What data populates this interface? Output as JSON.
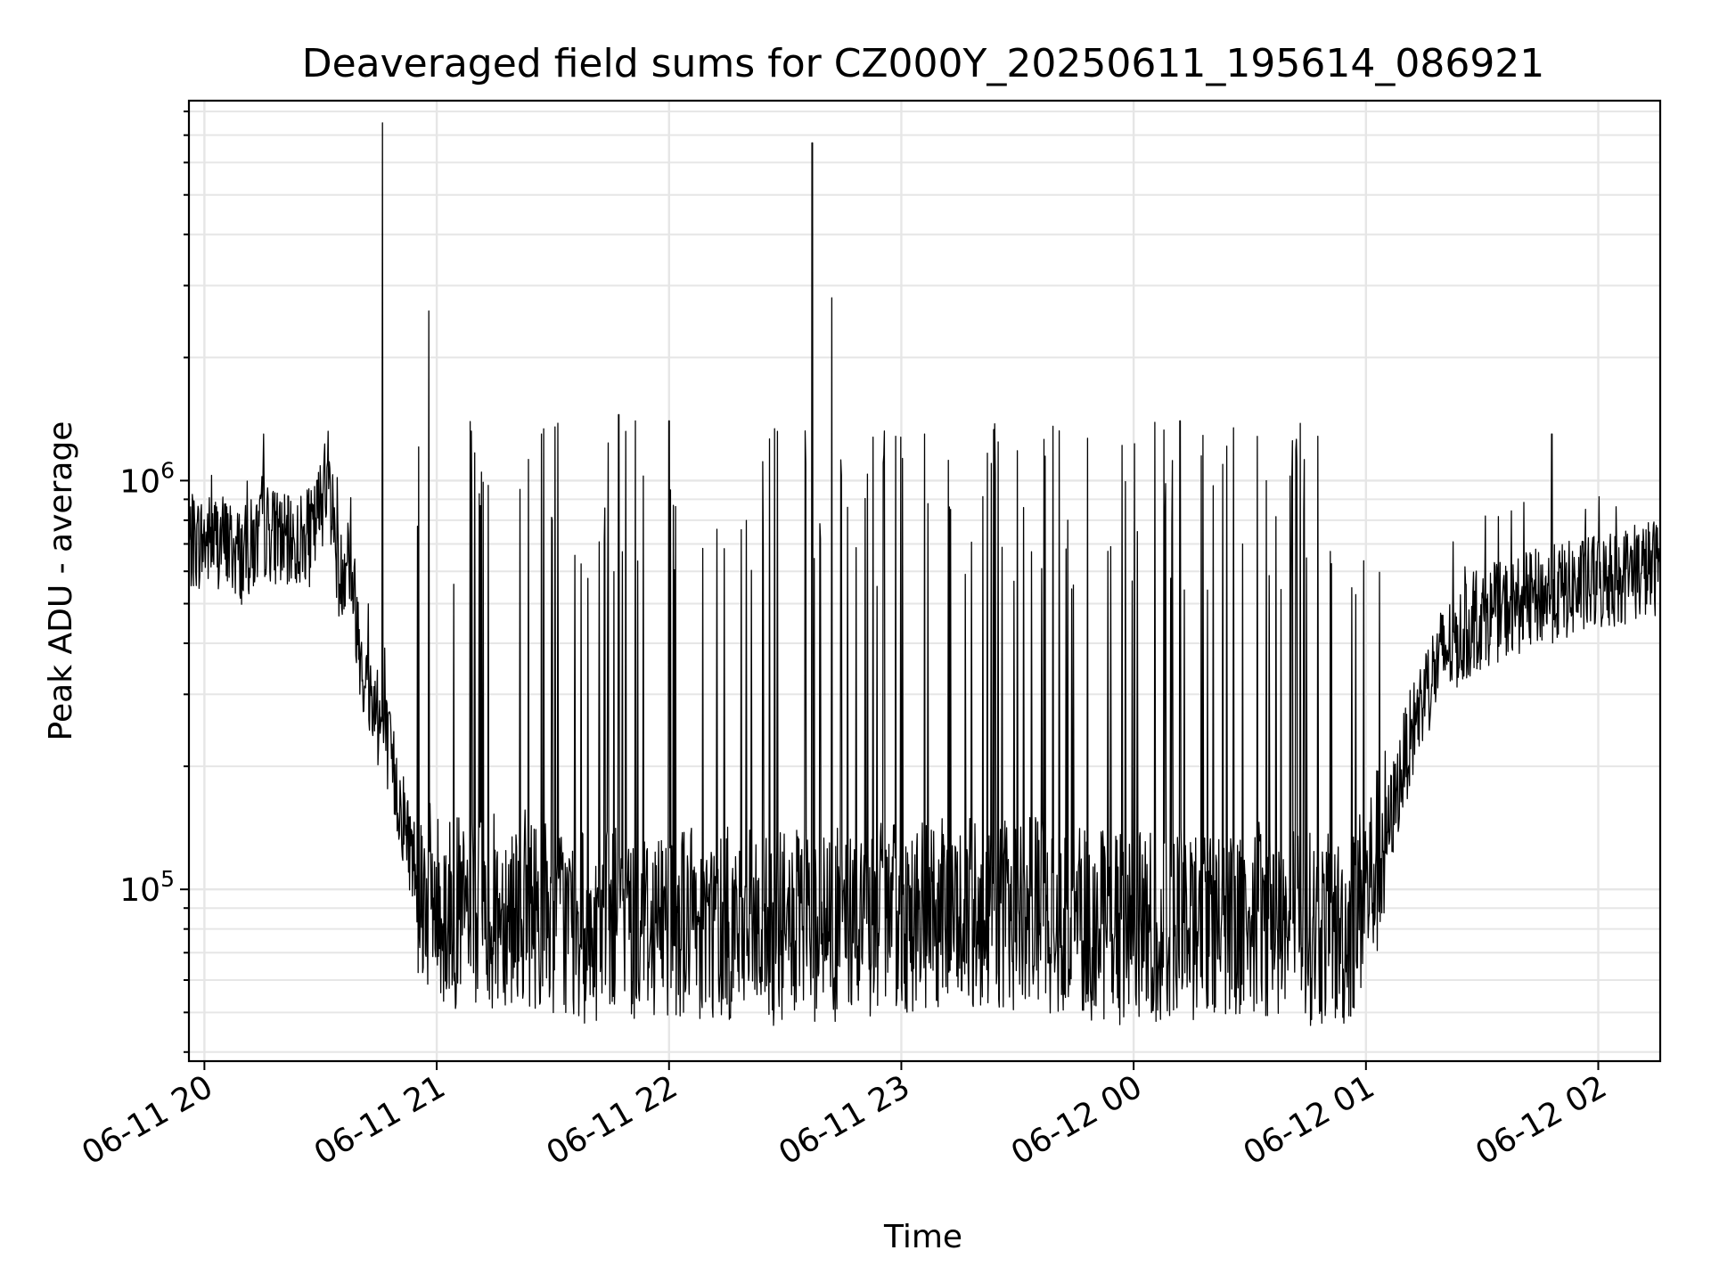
{
  "chart_data": {
    "type": "line",
    "title": "Deaveraged field sums for CZ000Y_20250611_195614_086921",
    "xlabel": "Time",
    "ylabel": "Peak ADU - average",
    "yscale": "log",
    "grid": "on (major and minor)",
    "legend": "none",
    "xlim": [
      "2025-06-11 19:56",
      "2025-06-12 02:16"
    ],
    "ylim": [
      38000,
      8500000
    ],
    "x_ticks": [
      "06-11 20",
      "06-11 21",
      "06-11 22",
      "06-11 23",
      "06-12 00",
      "06-12 01",
      "06-12 02"
    ],
    "x_tick_times": [
      "2025-06-11 20:00",
      "2025-06-11 21:00",
      "2025-06-11 22:00",
      "2025-06-11 23:00",
      "2025-06-12 00:00",
      "2025-06-12 01:00",
      "2025-06-12 02:00"
    ],
    "y_ticks": [
      {
        "value": 100000,
        "base": "10",
        "exp": "5"
      },
      {
        "value": 1000000,
        "base": "10",
        "exp": "6"
      }
    ],
    "series": [
      {
        "color": "#000000",
        "points": [
          [
            "2025-06-11 19:56",
            700000
          ],
          [
            "2025-06-11 20:04",
            720000
          ],
          [
            "2025-06-11 20:10",
            650000
          ],
          [
            "2025-06-11 20:16",
            760000
          ],
          [
            "2025-06-11 20:22",
            690000
          ],
          [
            "2025-06-11 20:28",
            730000
          ],
          [
            "2025-06-11 20:32",
            1050000
          ],
          [
            "2025-06-11 20:35",
            560000
          ],
          [
            "2025-06-11 20:37",
            700000
          ],
          [
            "2025-06-11 20:41",
            340000
          ],
          [
            "2025-06-11 20:44",
            280000
          ],
          [
            "2025-06-11 20:47",
            230000
          ],
          [
            "2025-06-11 20:50",
            170000
          ],
          [
            "2025-06-11 20:53",
            130000
          ],
          [
            "2025-06-11 20:56",
            100000
          ],
          [
            "2025-06-11 21:00",
            90000
          ],
          [
            "2025-06-11 21:10",
            85000
          ],
          [
            "2025-06-11 21:20",
            92000
          ],
          [
            "2025-06-11 21:40",
            80000
          ],
          [
            "2025-06-11 22:00",
            85000
          ],
          [
            "2025-06-11 22:30",
            80000
          ],
          [
            "2025-06-11 23:00",
            85000
          ],
          [
            "2025-06-11 23:30",
            88000
          ],
          [
            "2025-06-12 00:00",
            80000
          ],
          [
            "2025-06-12 00:30",
            85000
          ],
          [
            "2025-06-12 00:55",
            78000
          ],
          [
            "2025-06-12 01:00",
            100000
          ],
          [
            "2025-06-12 01:05",
            130000
          ],
          [
            "2025-06-12 01:10",
            210000
          ],
          [
            "2025-06-12 01:15",
            300000
          ],
          [
            "2025-06-12 01:20",
            380000
          ],
          [
            "2025-06-12 01:30",
            460000
          ],
          [
            "2025-06-12 01:45",
            520000
          ],
          [
            "2025-06-12 02:00",
            560000
          ],
          [
            "2025-06-12 02:16",
            620000
          ]
        ],
        "spikes": [
          [
            "2025-06-11 20:46",
            7500000
          ],
          [
            "2025-06-11 20:58",
            2600000
          ],
          [
            "2025-06-11 22:37",
            6700000
          ],
          [
            "2025-06-11 22:42",
            2800000
          ],
          [
            "2025-06-11 21:27",
            1300000
          ],
          [
            "2025-06-11 21:47",
            1450000
          ],
          [
            "2025-06-11 22:00",
            1400000
          ],
          [
            "2025-06-11 22:28",
            1320000
          ],
          [
            "2025-06-11 23:06",
            1300000
          ],
          [
            "2025-06-12 00:12",
            1400000
          ],
          [
            "2025-06-12 00:43",
            1380000
          ],
          [
            "2025-06-12 01:48",
            1300000
          ]
        ]
      }
    ]
  }
}
